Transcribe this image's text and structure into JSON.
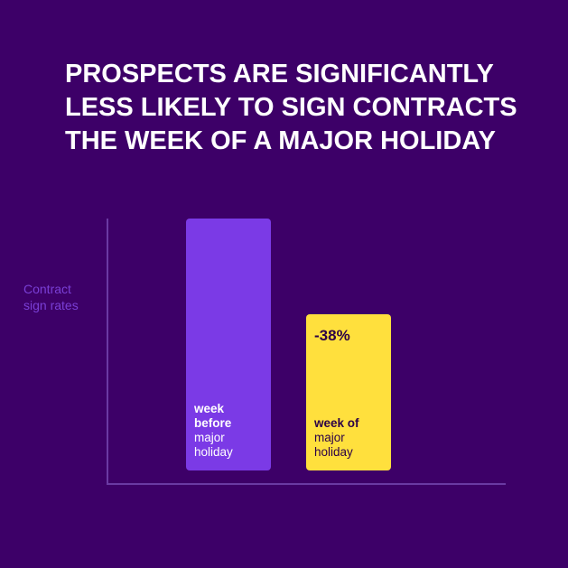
{
  "chart_data": {
    "type": "bar",
    "title_lines": [
      "PROSPECTS ARE SIGNIFICANTLY",
      "LESS LIKELY TO SIGN CONTRACTS",
      "THE WEEK OF A MAJOR HOLIDAY"
    ],
    "ylabel": "Contract sign rates",
    "categories": [
      {
        "bold": [
          "week",
          "before"
        ],
        "normal": [
          "major",
          "holiday"
        ]
      },
      {
        "bold": [
          "week of"
        ],
        "normal": [
          "major",
          "holiday"
        ]
      }
    ],
    "values": [
      100,
      62
    ],
    "data_labels": [
      "",
      "-38%"
    ],
    "ylim": [
      0,
      100
    ],
    "colors": [
      "#7b3ae6",
      "#ffe03d"
    ],
    "label_colors": [
      "#ffffff",
      "#2b0047"
    ]
  }
}
